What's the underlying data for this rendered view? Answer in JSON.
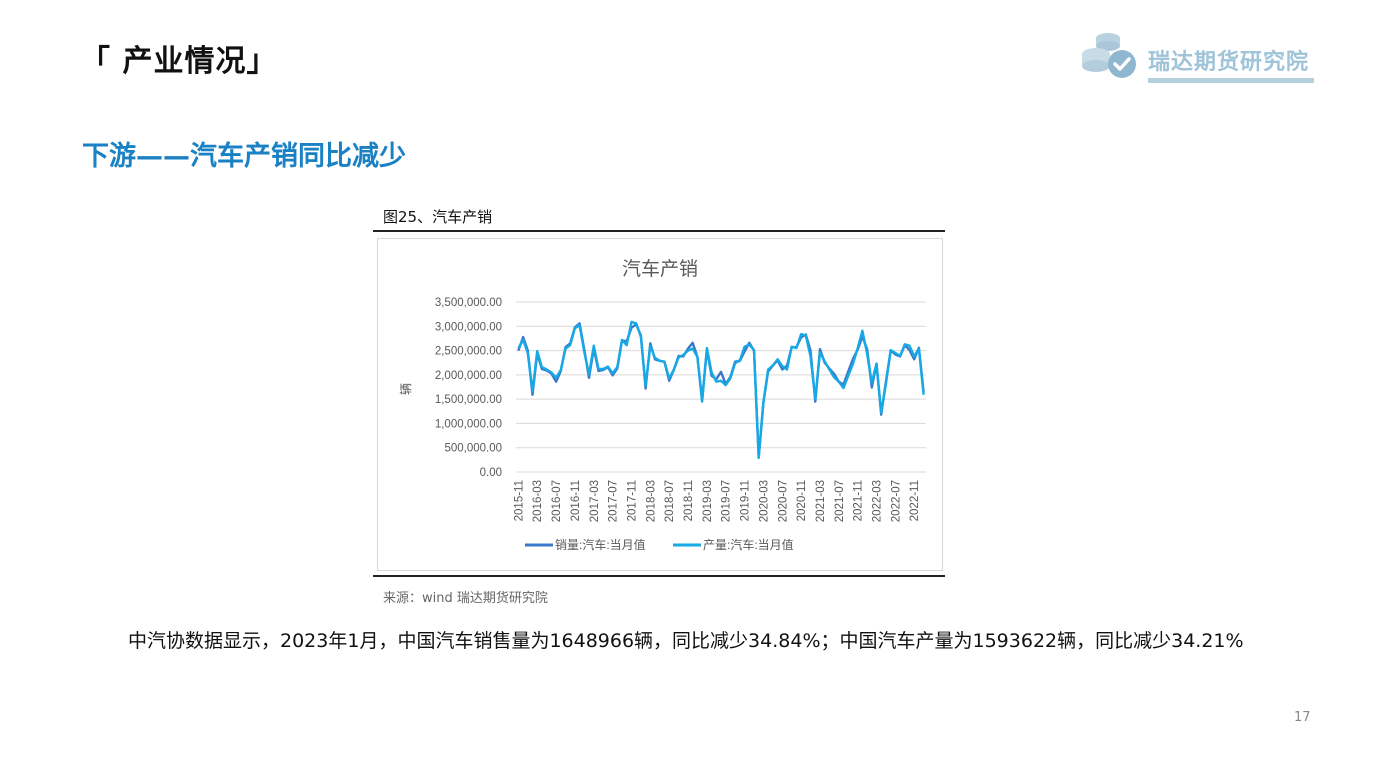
{
  "page": {
    "title": "「 产业情况」",
    "subtitle": "下游——汽车产销同比减少",
    "figure_caption": "图25、汽车产销",
    "source": "来源：wind   瑞达期货研究院",
    "summary": "中汽协数据显示，2023年1月，中国汽车销售量为1648966辆，同比减少34.84%；中国汽车产量为1593622辆，同比减少34.21%",
    "page_number": "17"
  },
  "logo": {
    "text": "瑞达期货研究院",
    "icon": "coins-check-icon",
    "color": "#9fc3d8"
  },
  "colors": {
    "accent": "#1a82c4",
    "sales_line": "#3a78c9",
    "production_line": "#16a9e6"
  },
  "chart_data": {
    "type": "line",
    "title": "汽车产销",
    "ylabel": "辆",
    "xlabel": "",
    "ylim": [
      0,
      3500000
    ],
    "yticks": [
      "0.00",
      "500,000.00",
      "1,000,000.00",
      "1,500,000.00",
      "2,000,000.00",
      "2,500,000.00",
      "3,000,000.00",
      "3,500,000.00"
    ],
    "xticks": [
      "2015-11",
      "2016-03",
      "2016-07",
      "2016-11",
      "2017-03",
      "2017-07",
      "2017-11",
      "2018-03",
      "2018-07",
      "2018-11",
      "2019-03",
      "2019-07",
      "2019-11",
      "2020-03",
      "2020-07",
      "2020-11",
      "2021-03",
      "2021-07",
      "2021-11",
      "2022-03",
      "2022-07",
      "2022-11"
    ],
    "grid": true,
    "legend_position": "bottom",
    "x": [
      "2015-11",
      "2015-12",
      "2016-01",
      "2016-02",
      "2016-03",
      "2016-04",
      "2016-05",
      "2016-06",
      "2016-07",
      "2016-08",
      "2016-09",
      "2016-10",
      "2016-11",
      "2016-12",
      "2017-01",
      "2017-02",
      "2017-03",
      "2017-04",
      "2017-05",
      "2017-06",
      "2017-07",
      "2017-08",
      "2017-09",
      "2017-10",
      "2017-11",
      "2017-12",
      "2018-01",
      "2018-02",
      "2018-03",
      "2018-04",
      "2018-05",
      "2018-06",
      "2018-07",
      "2018-08",
      "2018-09",
      "2018-10",
      "2018-11",
      "2018-12",
      "2019-01",
      "2019-02",
      "2019-03",
      "2019-04",
      "2019-05",
      "2019-06",
      "2019-07",
      "2019-08",
      "2019-09",
      "2019-10",
      "2019-11",
      "2019-12",
      "2020-01",
      "2020-02",
      "2020-03",
      "2020-04",
      "2020-05",
      "2020-06",
      "2020-07",
      "2020-08",
      "2020-09",
      "2020-10",
      "2020-11",
      "2020-12",
      "2021-01",
      "2021-02",
      "2021-03",
      "2021-04",
      "2021-05",
      "2021-06",
      "2021-07",
      "2021-08",
      "2021-09",
      "2021-10",
      "2021-11",
      "2021-12",
      "2022-01",
      "2022-02",
      "2022-03",
      "2022-04",
      "2022-05",
      "2022-06",
      "2022-07",
      "2022-08",
      "2022-09",
      "2022-10",
      "2022-11",
      "2022-12",
      "2023-01"
    ],
    "series": [
      {
        "name": "销量:汽车:当月值",
        "values": [
          2500000,
          2780000,
          2500000,
          1590000,
          2440000,
          2120000,
          2090000,
          2030000,
          1860000,
          2080000,
          2570000,
          2650000,
          2980000,
          3060000,
          2520000,
          1940000,
          2540000,
          2080000,
          2100000,
          2160000,
          1990000,
          2130000,
          2710000,
          2690000,
          2970000,
          3040000,
          2810000,
          1720000,
          2650000,
          2320000,
          2290000,
          2270000,
          1880000,
          2110000,
          2390000,
          2380000,
          2540000,
          2660000,
          2370000,
          1480000,
          2520000,
          1980000,
          1910000,
          2060000,
          1810000,
          1960000,
          2270000,
          2290000,
          2480000,
          2660000,
          2500000,
          310000,
          1430000,
          2070000,
          2190000,
          2300000,
          2110000,
          2190000,
          2570000,
          2570000,
          2770000,
          2830000,
          2500000,
          1450000,
          2530000,
          2250000,
          2130000,
          2020000,
          1860000,
          1800000,
          2070000,
          2330000,
          2520000,
          2790000,
          2530000,
          1740000,
          2230000,
          1180000,
          1860000,
          2500000,
          2420000,
          2380000,
          2610000,
          2510000,
          2320000,
          2560000,
          1650000
        ]
      },
      {
        "name": "产量:汽车:当月值",
        "values": [
          2550000,
          2720000,
          2450000,
          1660000,
          2490000,
          2160000,
          2110000,
          2050000,
          1940000,
          2100000,
          2540000,
          2610000,
          2960000,
          3020000,
          2470000,
          2010000,
          2600000,
          2120000,
          2120000,
          2170000,
          2030000,
          2160000,
          2720000,
          2610000,
          3090000,
          3060000,
          2780000,
          1780000,
          2600000,
          2350000,
          2290000,
          2270000,
          1930000,
          2110000,
          2360000,
          2410000,
          2500000,
          2540000,
          2370000,
          1450000,
          2550000,
          2050000,
          1860000,
          1880000,
          1790000,
          1930000,
          2240000,
          2300000,
          2580000,
          2620000,
          2510000,
          290000,
          1430000,
          2110000,
          2190000,
          2320000,
          2180000,
          2110000,
          2580000,
          2550000,
          2840000,
          2810000,
          2380000,
          1510000,
          2460000,
          2280000,
          2110000,
          1950000,
          1860000,
          1730000,
          1980000,
          2230000,
          2550000,
          2910000,
          2440000,
          1840000,
          2230000,
          1220000,
          1810000,
          2510000,
          2450000,
          2390000,
          2630000,
          2600000,
          2380000,
          2540000,
          1590000
        ]
      }
    ]
  }
}
